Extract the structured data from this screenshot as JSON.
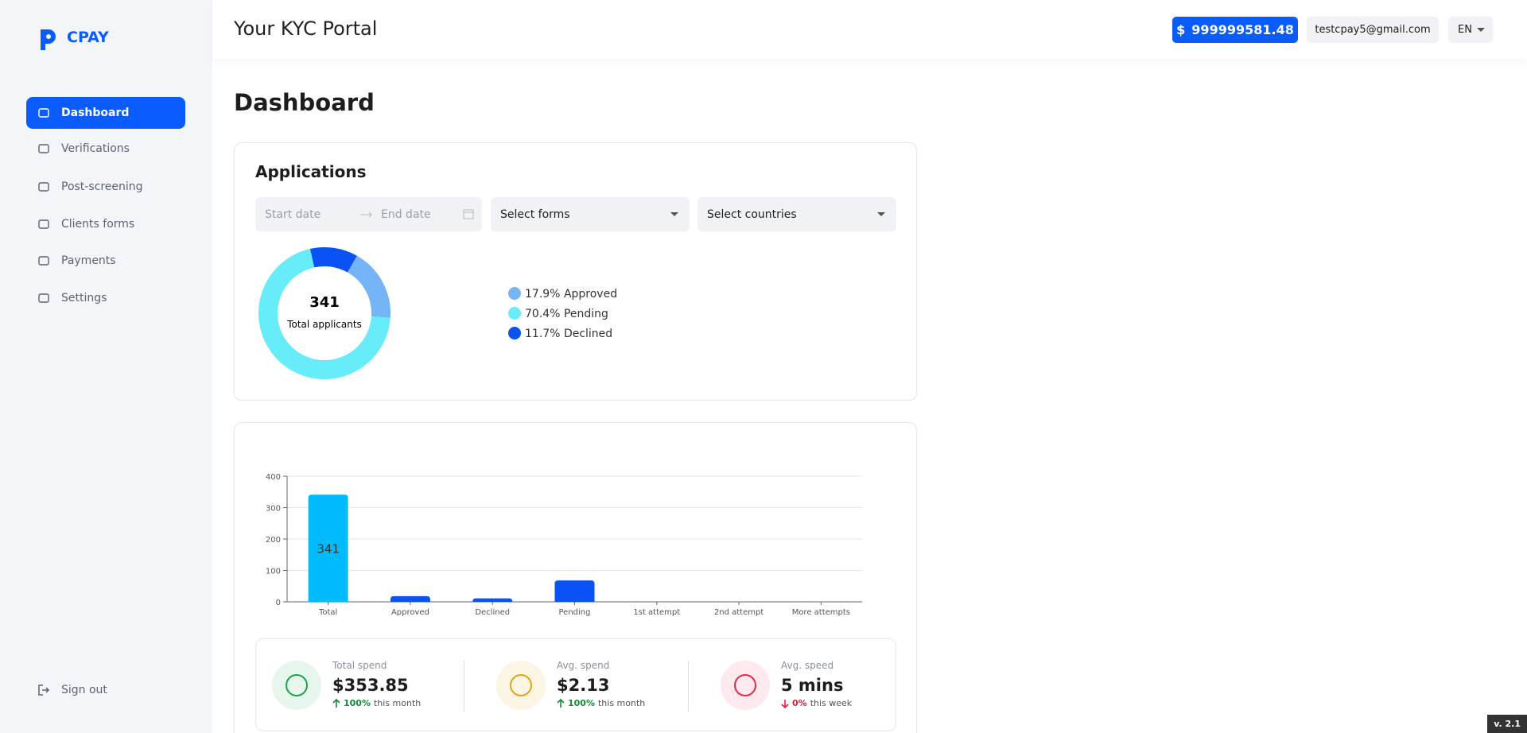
{
  "sidebar": {
    "logo": "CPAY",
    "items": [
      "Dashboard",
      "Verifications",
      "Post-screening",
      "Clients forms",
      "Payments",
      "Settings"
    ],
    "sign_out": "Sign out"
  },
  "header": {
    "title": "Your KYC Portal",
    "currency": "$",
    "balance": "999999581.48",
    "email": "testcpay5@gmail.com",
    "language": "EN"
  },
  "page_title": "Dashboard",
  "applications": {
    "title": "Applications",
    "filters": {
      "start_date": "Start date",
      "end_date": "End date",
      "forms": "Select forms",
      "countries": "Select countries"
    }
  },
  "chart_data": [
    {
      "type": "pie",
      "donut": true,
      "total": 341,
      "total_label": "Total applicants",
      "categories": [
        "Approved",
        "Pending",
        "Declined"
      ],
      "values": [
        17.9,
        70.4,
        11.7
      ],
      "value_labels": [
        "17.9%",
        "70.4%",
        "11.7%"
      ],
      "colors": [
        "#74b4f7",
        "#67edf9",
        "#0b52f5"
      ]
    },
    {
      "type": "bar",
      "categories": [
        "Total",
        "Approved",
        "Declined",
        "Pending",
        "1st attempt",
        "2nd attempt",
        "More attempts"
      ],
      "values": [
        341,
        18,
        11,
        68,
        0,
        0,
        0
      ],
      "colors": [
        "#00bbfb",
        "#0b52f5",
        "#0b52f5",
        "#0b52f5",
        "#0b52f5",
        "#0b52f5",
        "#0b52f5"
      ],
      "ylim": [
        0,
        400
      ],
      "yticks": [
        0,
        100,
        200,
        300,
        400
      ],
      "grid": true
    }
  ],
  "stats": [
    {
      "label": "Total spend",
      "value": "$353.85",
      "change": "100%",
      "direction": "up",
      "period": "this month"
    },
    {
      "label": "Avg. spend",
      "value": "$2.13",
      "change": "100%",
      "direction": "up",
      "period": "this month"
    },
    {
      "label": "Avg. speed",
      "value": "5 mins",
      "change": "0%",
      "direction": "down",
      "period": "this week"
    }
  ],
  "version": "v. 2.1"
}
